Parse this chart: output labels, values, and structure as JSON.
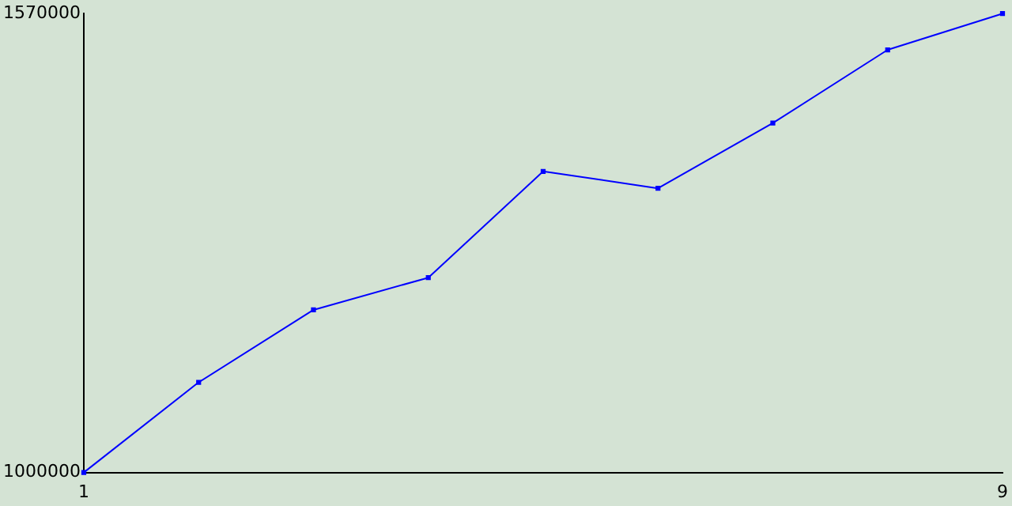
{
  "chart_data": {
    "type": "line",
    "x": [
      1,
      2,
      3,
      4,
      5,
      6,
      7,
      8,
      9
    ],
    "series": [
      {
        "color": "#0000ff",
        "values": [
          1000000,
          1112000,
          1202000,
          1242000,
          1374000,
          1353000,
          1434000,
          1525000,
          1570000
        ]
      }
    ],
    "xlim": [
      1,
      9
    ],
    "xticks": [
      1,
      9
    ],
    "ylim": [
      1000000,
      1570000
    ],
    "yticks": [
      1000000,
      1570000
    ],
    "grid": false,
    "legend": false,
    "marker": "square",
    "line_style": "solid"
  }
}
